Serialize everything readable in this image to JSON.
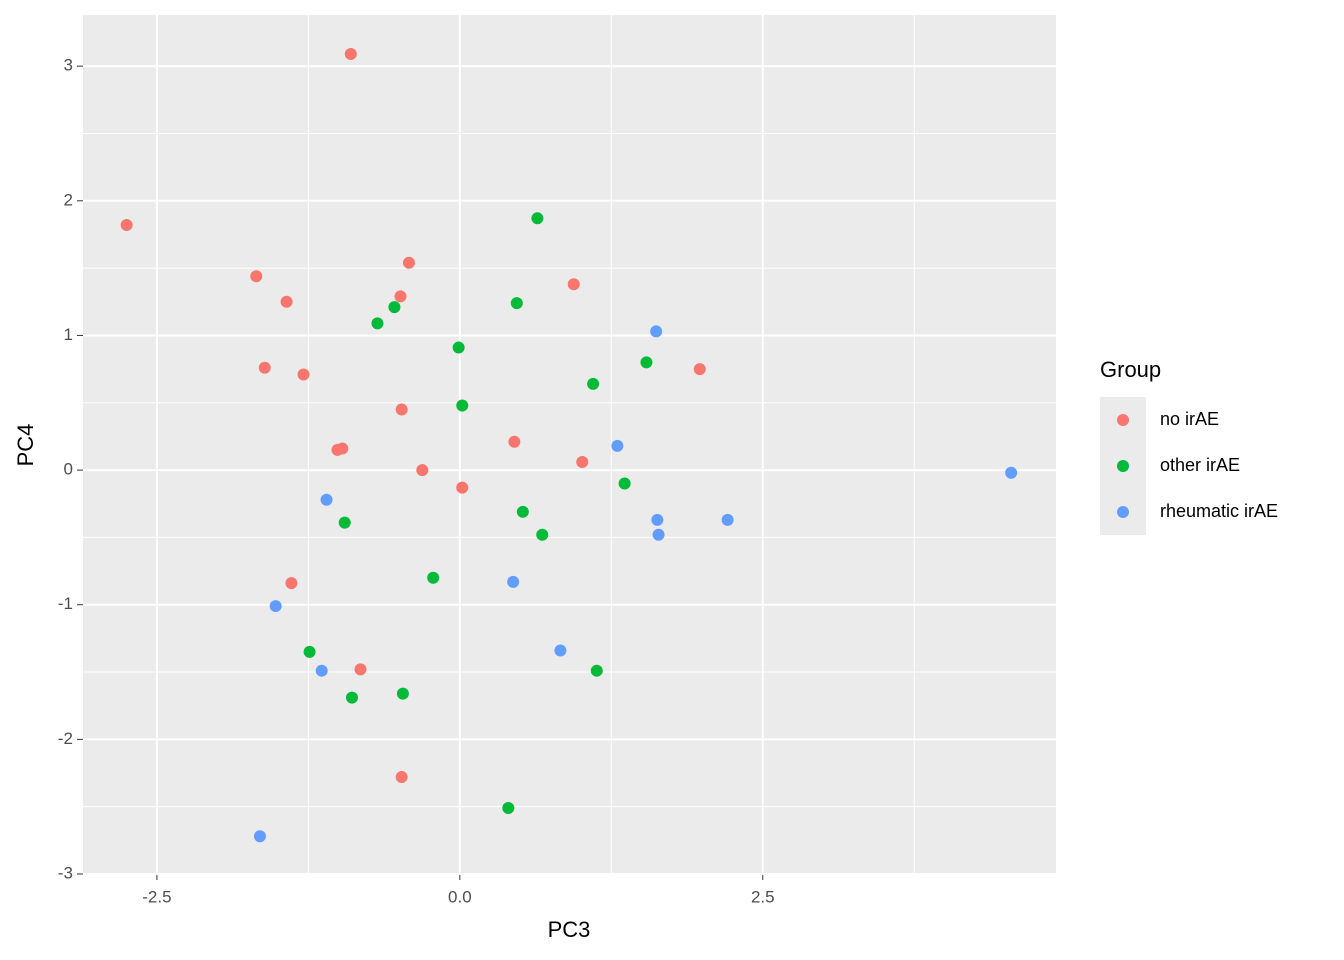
{
  "chart_data": {
    "type": "scatter",
    "x_label": "PC3",
    "y_label": "PC4",
    "legend_title": "Group",
    "legend_position": "right",
    "xlim": [
      -3.11,
      4.92
    ],
    "ylim": [
      -3.0,
      3.38
    ],
    "xticks": [
      -2.5,
      {
        "value": 0,
        "label": "0.0"
      },
      2.5
    ],
    "yticks": [
      -3,
      -2,
      -1,
      0,
      1,
      2,
      3
    ],
    "x_minor_ticks": [
      -1.25,
      1.25,
      3.75
    ],
    "y_minor_ticks": [
      -2.5,
      -1.5,
      -0.5,
      0.5,
      1.5,
      2.5
    ],
    "grid": true,
    "series": [
      {
        "name": "no irAE",
        "color": "#F8766D",
        "x": [
          -2.75,
          -0.9,
          -1.68,
          -1.43,
          -0.42,
          -0.49,
          0.94,
          -1.61,
          -1.29,
          -0.48,
          1.98,
          -1.01,
          -0.97,
          -0.31,
          0.45,
          1.01,
          0.02,
          -1.39,
          -0.82,
          -0.48
        ],
        "y": [
          1.82,
          3.09,
          1.44,
          1.25,
          1.54,
          1.29,
          1.38,
          0.76,
          0.71,
          0.45,
          0.75,
          0.15,
          0.16,
          0.0,
          0.21,
          0.06,
          -0.13,
          -0.84,
          -1.48,
          -2.28
        ]
      },
      {
        "name": "other irAE",
        "color": "#00BA38",
        "x": [
          0.64,
          0.47,
          -0.68,
          -0.54,
          -0.01,
          1.1,
          1.54,
          0.02,
          1.36,
          0.52,
          0.68,
          -0.95,
          -0.22,
          -1.24,
          1.13,
          -0.89,
          -0.47,
          0.4
        ],
        "y": [
          1.87,
          1.24,
          1.09,
          1.21,
          0.91,
          0.64,
          0.8,
          0.48,
          -0.1,
          -0.31,
          -0.48,
          -0.39,
          -0.8,
          -1.35,
          -1.49,
          -1.69,
          -1.66,
          -2.51
        ]
      },
      {
        "name": "rheumatic irAE",
        "color": "#619CFF",
        "x": [
          1.62,
          1.3,
          4.55,
          -1.1,
          1.63,
          2.21,
          1.64,
          0.44,
          -1.52,
          0.83,
          -1.14,
          -1.65
        ],
        "y": [
          1.03,
          0.18,
          -0.02,
          -0.22,
          -0.37,
          -0.37,
          -0.48,
          -0.83,
          -1.01,
          -1.34,
          -1.49,
          -2.72
        ]
      }
    ]
  }
}
